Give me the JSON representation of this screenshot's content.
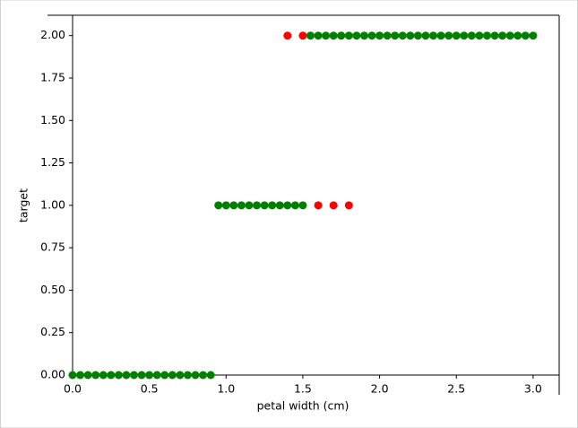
{
  "chart_data": {
    "type": "scatter",
    "xlabel": "petal width (cm)",
    "ylabel": "target",
    "xlim": [
      0,
      3.17
    ],
    "ylim": [
      0,
      2.12
    ],
    "xticks": [
      {
        "value": 0,
        "label": "0.0"
      },
      {
        "value": 0.5,
        "label": "0.5"
      },
      {
        "value": 1,
        "label": "1.0"
      },
      {
        "value": 1.5,
        "label": "1.5"
      },
      {
        "value": 2,
        "label": "2.0"
      },
      {
        "value": 2.5,
        "label": "2.5"
      },
      {
        "value": 3,
        "label": "3.0"
      }
    ],
    "yticks": [
      {
        "value": 0,
        "label": "0.00"
      },
      {
        "value": 0.25,
        "label": "0.25"
      },
      {
        "value": 0.5,
        "label": "0.50"
      },
      {
        "value": 0.75,
        "label": "0.75"
      },
      {
        "value": 1,
        "label": "1.00"
      },
      {
        "value": 1.25,
        "label": "1.25"
      },
      {
        "value": 1.5,
        "label": "1.50"
      },
      {
        "value": 1.75,
        "label": "1.75"
      },
      {
        "value": 2,
        "label": "2.00"
      }
    ],
    "series": [
      {
        "color": "#ff0000",
        "x": [
          1.4,
          1.5,
          1.6,
          1.7,
          1.8
        ],
        "y": [
          2,
          2,
          1,
          1,
          1
        ]
      },
      {
        "color": "#008000",
        "x": [
          0,
          0.05,
          0.1,
          0.15,
          0.2,
          0.25,
          0.3,
          0.35,
          0.4,
          0.45,
          0.5,
          0.55,
          0.6,
          0.65,
          0.7,
          0.75,
          0.8,
          0.85,
          0.9,
          0.95,
          1.0,
          1.05,
          1.1,
          1.15,
          1.2,
          1.25,
          1.3,
          1.35,
          1.4,
          1.45,
          1.5,
          1.55,
          1.6,
          1.65,
          1.7,
          1.75,
          1.8,
          1.85,
          1.9,
          1.95,
          2.0,
          2.05,
          2.1,
          2.15,
          2.2,
          2.25,
          2.3,
          2.35,
          2.4,
          2.45,
          2.5,
          2.55,
          2.6,
          2.65,
          2.7,
          2.75,
          2.8,
          2.85,
          2.9,
          2.95,
          3.0
        ],
        "y": [
          0,
          0,
          0,
          0,
          0,
          0,
          0,
          0,
          0,
          0,
          0,
          0,
          0,
          0,
          0,
          0,
          0,
          0,
          0,
          1,
          1,
          1,
          1,
          1,
          1,
          1,
          1,
          1,
          1,
          1,
          1,
          2,
          2,
          2,
          2,
          2,
          2,
          2,
          2,
          2,
          2,
          2,
          2,
          2,
          2,
          2,
          2,
          2,
          2,
          2,
          2,
          2,
          2,
          2,
          2,
          2,
          2,
          2,
          2,
          2,
          2
        ]
      }
    ]
  }
}
